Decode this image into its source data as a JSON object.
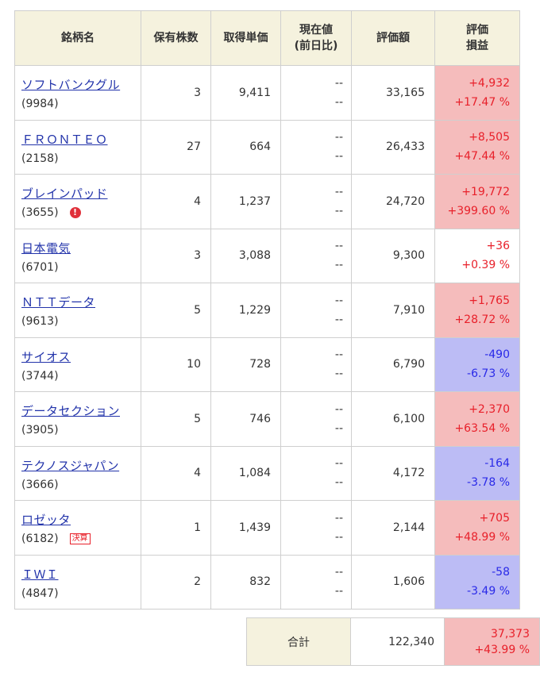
{
  "headers": {
    "name": "銘柄名",
    "qty": "保有株数",
    "cost": "取得単価",
    "current_line1": "現在値",
    "current_line2": "(前日比)",
    "value": "評価額",
    "pl_line1": "評価",
    "pl_line2": "損益"
  },
  "holdings": [
    {
      "name": "ソフトバンクグル",
      "code": "(9984)",
      "qty": "3",
      "cost": "9,411",
      "cur1": "--",
      "cur2": "--",
      "value": "33,165",
      "pl_amount": "+4,932",
      "pl_percent": "+17.47 %",
      "direction": "gain"
    },
    {
      "name": "ＦＲＯＮＴＥＯ",
      "code": "(2158)",
      "qty": "27",
      "cost": "664",
      "cur1": "--",
      "cur2": "--",
      "value": "26,433",
      "pl_amount": "+8,505",
      "pl_percent": "+47.44 %",
      "direction": "gain"
    },
    {
      "name": "ブレインパッド",
      "code": "(3655)",
      "qty": "4",
      "cost": "1,237",
      "cur1": "--",
      "cur2": "--",
      "value": "24,720",
      "pl_amount": "+19,772",
      "pl_percent": "+399.60 %",
      "direction": "gain",
      "badge_icon": "alert-icon",
      "badge_glyph": "!"
    },
    {
      "name": "日本電気",
      "code": "(6701)",
      "qty": "3",
      "cost": "3,088",
      "cur1": "--",
      "cur2": "--",
      "value": "9,300",
      "pl_amount": "+36",
      "pl_percent": "+0.39 %",
      "direction": "gain-plain"
    },
    {
      "name": "ＮＴＴデータ",
      "code": "(9613)",
      "qty": "5",
      "cost": "1,229",
      "cur1": "--",
      "cur2": "--",
      "value": "7,910",
      "pl_amount": "+1,765",
      "pl_percent": "+28.72 %",
      "direction": "gain"
    },
    {
      "name": "サイオス",
      "code": "(3744)",
      "qty": "10",
      "cost": "728",
      "cur1": "--",
      "cur2": "--",
      "value": "6,790",
      "pl_amount": "-490",
      "pl_percent": "-6.73 %",
      "direction": "loss"
    },
    {
      "name": "データセクション",
      "code": "(3905)",
      "qty": "5",
      "cost": "746",
      "cur1": "--",
      "cur2": "--",
      "value": "6,100",
      "pl_amount": "+2,370",
      "pl_percent": "+63.54 %",
      "direction": "gain"
    },
    {
      "name": "テクノスジャパン",
      "code": "(3666)",
      "qty": "4",
      "cost": "1,084",
      "cur1": "--",
      "cur2": "--",
      "value": "4,172",
      "pl_amount": "-164",
      "pl_percent": "-3.78 %",
      "direction": "loss"
    },
    {
      "name": "ロゼッタ",
      "code": "(6182)",
      "qty": "1",
      "cost": "1,439",
      "cur1": "--",
      "cur2": "--",
      "value": "2,144",
      "pl_amount": "+705",
      "pl_percent": "+48.99 %",
      "direction": "gain",
      "badge_text": "決算"
    },
    {
      "name": "ＩＷＩ",
      "code": "(4847)",
      "qty": "2",
      "cost": "832",
      "cur1": "--",
      "cur2": "--",
      "value": "1,606",
      "pl_amount": "-58",
      "pl_percent": "-3.49 %",
      "direction": "loss"
    }
  ],
  "total": {
    "label": "合計",
    "value": "122,340",
    "pl_amount": "37,373",
    "pl_percent": "+43.99 %"
  },
  "colors": {
    "header_bg": "#f5f2de",
    "gain_bg": "#f5bcbc",
    "loss_bg": "#bcbcf5",
    "gain_text": "#e8202a",
    "loss_text": "#2a2ae8",
    "link": "#2233aa"
  }
}
